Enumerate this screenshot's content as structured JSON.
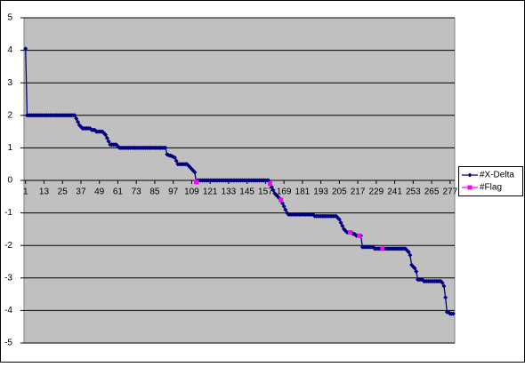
{
  "chart_data": {
    "type": "line",
    "x": [
      1,
      2,
      3,
      4,
      5,
      6,
      7,
      8,
      9,
      10,
      11,
      12,
      13,
      14,
      15,
      16,
      17,
      18,
      19,
      20,
      21,
      22,
      23,
      24,
      25,
      26,
      27,
      28,
      29,
      30,
      31,
      32,
      33,
      34,
      35,
      36,
      37,
      38,
      39,
      40,
      41,
      42,
      43,
      44,
      45,
      46,
      47,
      48,
      49,
      50,
      51,
      52,
      53,
      54,
      55,
      56,
      57,
      58,
      59,
      60,
      61,
      62,
      63,
      64,
      65,
      66,
      67,
      68,
      69,
      70,
      71,
      72,
      73,
      74,
      75,
      76,
      77,
      78,
      79,
      80,
      81,
      82,
      83,
      84,
      85,
      86,
      87,
      88,
      89,
      90,
      91,
      92,
      93,
      94,
      95,
      96,
      97,
      98,
      99,
      100,
      101,
      102,
      103,
      104,
      105,
      106,
      107,
      108,
      109,
      110,
      111,
      112,
      113,
      114,
      115,
      116,
      117,
      118,
      119,
      120,
      121,
      122,
      123,
      124,
      125,
      126,
      127,
      128,
      129,
      130,
      131,
      132,
      133,
      134,
      135,
      136,
      137,
      138,
      139,
      140,
      141,
      142,
      143,
      144,
      145,
      146,
      147,
      148,
      149,
      150,
      151,
      152,
      153,
      154,
      155,
      156,
      157,
      158,
      159,
      160,
      161,
      162,
      163,
      164,
      165,
      166,
      167,
      168,
      169,
      170,
      171,
      172,
      173,
      174,
      175,
      176,
      177,
      178,
      179,
      180,
      181,
      182,
      183,
      184,
      185,
      186,
      187,
      188,
      189,
      190,
      191,
      192,
      193,
      194,
      195,
      196,
      197,
      198,
      199,
      200,
      201,
      202,
      203,
      204,
      205,
      206,
      207,
      208,
      209,
      210,
      211,
      212,
      213,
      214,
      215,
      216,
      217,
      218,
      219,
      220,
      221,
      222,
      223,
      224,
      225,
      226,
      227,
      228,
      229,
      230,
      231,
      232,
      233,
      234,
      235,
      236,
      237,
      238,
      239,
      240,
      241,
      242,
      243,
      244,
      245,
      246,
      247,
      248,
      249,
      250,
      251,
      252,
      253,
      254,
      255,
      256,
      257,
      258,
      259,
      260,
      261,
      262,
      263,
      264,
      265,
      266,
      267,
      268,
      269,
      270,
      271,
      272,
      273,
      274,
      275,
      276,
      277,
      278,
      279
    ],
    "series": [
      {
        "name": "#X-Delta",
        "color": "#000080",
        "values": [
          4.05,
          2,
          2,
          2,
          2,
          2,
          2,
          2,
          2,
          2,
          2,
          2,
          2,
          2,
          2,
          2,
          2,
          2,
          2,
          2,
          2,
          2,
          2,
          2,
          2,
          2,
          2,
          2,
          2,
          2,
          2,
          2,
          2,
          1.9,
          1.8,
          1.7,
          1.65,
          1.6,
          1.6,
          1.6,
          1.6,
          1.6,
          1.6,
          1.55,
          1.55,
          1.55,
          1.5,
          1.5,
          1.5,
          1.5,
          1.5,
          1.45,
          1.4,
          1.3,
          1.2,
          1.1,
          1.1,
          1.1,
          1.1,
          1.1,
          1.05,
          1,
          1,
          1,
          1,
          1,
          1,
          1,
          1,
          1,
          1,
          1,
          1,
          1,
          1,
          1,
          1,
          1,
          1,
          1,
          1,
          1,
          1,
          1,
          1,
          1,
          1,
          1,
          1,
          1,
          1,
          1,
          0.8,
          0.78,
          0.76,
          0.75,
          0.72,
          0.7,
          0.6,
          0.5,
          0.5,
          0.5,
          0.5,
          0.5,
          0.5,
          0.5,
          0.45,
          0.4,
          0.35,
          0.3,
          0.25,
          -0.05,
          0,
          0,
          0,
          0,
          0,
          0,
          0,
          0,
          0,
          0,
          0,
          0,
          0,
          0,
          0,
          0,
          0,
          0,
          0,
          0,
          0,
          0,
          0,
          0,
          0,
          0,
          0,
          0,
          0,
          0,
          0,
          0,
          0,
          0,
          0,
          0,
          0,
          0,
          0,
          0,
          0,
          0,
          0,
          0,
          0,
          0,
          0,
          -0.1,
          -0.2,
          -0.3,
          -0.4,
          -0.45,
          -0.5,
          -0.55,
          -0.6,
          -0.7,
          -0.8,
          -0.9,
          -1,
          -1.05,
          -1.05,
          -1.05,
          -1.05,
          -1.05,
          -1.05,
          -1.05,
          -1.05,
          -1.05,
          -1.05,
          -1.05,
          -1.05,
          -1.05,
          -1.05,
          -1.05,
          -1.05,
          -1.05,
          -1.1,
          -1.1,
          -1.1,
          -1.1,
          -1.1,
          -1.1,
          -1.1,
          -1.1,
          -1.1,
          -1.1,
          -1.1,
          -1.1,
          -1.1,
          -1.1,
          -1.1,
          -1.15,
          -1.2,
          -1.3,
          -1.4,
          -1.5,
          -1.55,
          -1.6,
          -1.6,
          -1.6,
          -1.6,
          -1.65,
          -1.65,
          -1.7,
          -1.7,
          -1.7,
          -1.7,
          -2.05,
          -2.05,
          -2.05,
          -2.05,
          -2.05,
          -2.05,
          -2.05,
          -2.05,
          -2.1,
          -2.1,
          -2.1,
          -2.1,
          -2.1,
          -2.1,
          -2.1,
          -2.1,
          -2.1,
          -2.1,
          -2.1,
          -2.1,
          -2.1,
          -2.1,
          -2.1,
          -2.1,
          -2.1,
          -2.1,
          -2.1,
          -2.1,
          -2.1,
          -2.15,
          -2.2,
          -2.3,
          -2.6,
          -2.65,
          -2.7,
          -2.8,
          -3.05,
          -3.05,
          -3.05,
          -3.05,
          -3.1,
          -3.1,
          -3.1,
          -3.1,
          -3.1,
          -3.1,
          -3.1,
          -3.1,
          -3.1,
          -3.1,
          -3.1,
          -3.1,
          -3.15,
          -3.25,
          -3.6,
          -4.05,
          -4.05,
          -4.1,
          -4.1,
          -4.1
        ]
      },
      {
        "name": "#Flag",
        "color": "#ff00ff",
        "x": [
          112,
          160,
          167,
          212,
          218,
          233
        ],
        "values": [
          -0.05,
          -0.1,
          -0.6,
          -1.6,
          -1.7,
          -2.1
        ]
      }
    ],
    "xlim": [
      0,
      280
    ],
    "xticks": [
      1,
      13,
      25,
      37,
      49,
      61,
      73,
      85,
      97,
      109,
      121,
      133,
      145,
      157,
      169,
      181,
      193,
      205,
      217,
      229,
      241,
      253,
      265,
      277
    ],
    "ylim": [
      -5,
      5
    ],
    "yticks": [
      -5,
      -4,
      -3,
      -2,
      -1,
      0,
      1,
      2,
      3,
      4,
      5
    ],
    "grid": true
  }
}
